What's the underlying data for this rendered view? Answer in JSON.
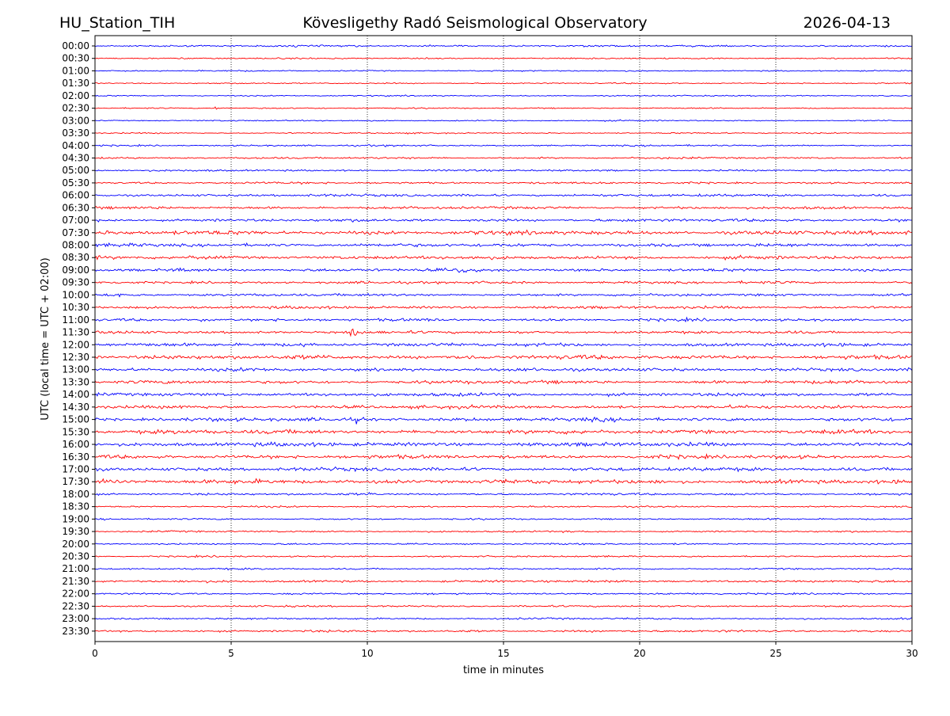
{
  "header": {
    "station": "HU_Station_TIH",
    "observatory": "Kövesligethy Radó Seismological Observatory",
    "date": "2026-04-13"
  },
  "chart_data": {
    "type": "line",
    "title": "Kövesligethy Radó Seismological Observatory",
    "xlabel": "time in minutes",
    "ylabel": "UTC (local time = UTC + 02:00)",
    "xlim": [
      0,
      30
    ],
    "x_ticks": [
      "0",
      "5",
      "10",
      "15",
      "20",
      "25",
      "30"
    ],
    "x_tick_values": [
      0,
      5,
      10,
      15,
      20,
      25,
      30
    ],
    "grid": "vertical dotted at x ticks",
    "colors": {
      "even_row": "#0000ff",
      "odd_row": "#ff0000"
    },
    "rows": [
      "00:00",
      "00:30",
      "01:00",
      "01:30",
      "02:00",
      "02:30",
      "03:00",
      "03:30",
      "04:00",
      "04:30",
      "05:00",
      "05:30",
      "06:00",
      "06:30",
      "07:00",
      "07:30",
      "08:00",
      "08:30",
      "09:00",
      "09:30",
      "10:00",
      "10:30",
      "11:00",
      "11:30",
      "12:00",
      "12:30",
      "13:00",
      "13:30",
      "14:00",
      "14:30",
      "15:00",
      "15:30",
      "16:00",
      "16:30",
      "17:00",
      "17:30",
      "18:00",
      "18:30",
      "19:00",
      "19:30",
      "20:00",
      "20:30",
      "21:00",
      "21:30",
      "22:00",
      "22:30",
      "23:00",
      "23:30"
    ],
    "noise_level": [
      1.0,
      0.8,
      0.7,
      0.7,
      0.7,
      0.7,
      0.7,
      0.7,
      0.9,
      1.0,
      1.0,
      1.1,
      1.4,
      1.4,
      1.6,
      2.2,
      1.8,
      1.8,
      1.6,
      1.4,
      1.4,
      1.5,
      1.5,
      1.5,
      1.8,
      2.2,
      1.8,
      1.8,
      1.8,
      1.8,
      2.0,
      2.2,
      2.2,
      2.0,
      2.0,
      2.2,
      1.2,
      0.9,
      0.9,
      0.9,
      0.9,
      0.9,
      0.9,
      1.2,
      1.0,
      1.0,
      1.0,
      1.2
    ],
    "events": [
      {
        "row": "02:30",
        "minute": 4.4,
        "amplitude": 5
      },
      {
        "row": "08:30",
        "minute": 3.6,
        "amplitude": 4
      },
      {
        "row": "09:00",
        "minute": 13.4,
        "amplitude": 18
      },
      {
        "row": "09:00",
        "minute": 3.0,
        "amplitude": 5
      },
      {
        "row": "10:00",
        "minute": 0.7,
        "amplitude": 5
      },
      {
        "row": "10:30",
        "minute": 1.2,
        "amplitude": 7
      },
      {
        "row": "11:00",
        "minute": 3.9,
        "amplitude": 6
      },
      {
        "row": "11:30",
        "minute": 9.4,
        "amplitude": 11
      },
      {
        "row": "12:00",
        "minute": 7.6,
        "amplitude": 6
      },
      {
        "row": "12:30",
        "minute": 13.6,
        "amplitude": 8
      },
      {
        "row": "15:00",
        "minute": 9.6,
        "amplitude": 5
      },
      {
        "row": "17:30",
        "minute": 0.3,
        "amplitude": 9
      },
      {
        "row": "18:00",
        "minute": 10.0,
        "amplitude": 5
      }
    ]
  }
}
